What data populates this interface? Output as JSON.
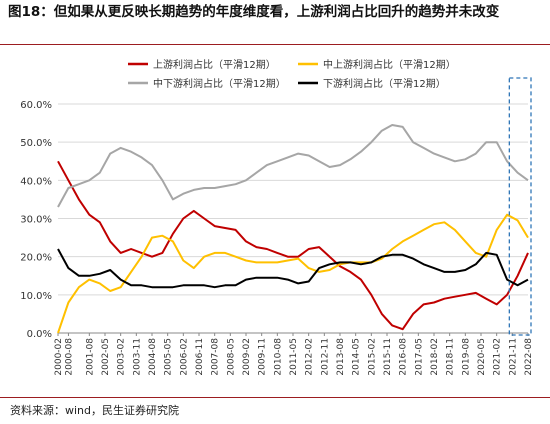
{
  "title": "图18：但如果从更反映长期趋势的年度维度看，上游利润占比回升的趋势并未改变",
  "source": "资料来源：wind，民生证券研究院",
  "chart_data": {
    "type": "line",
    "ylim": [
      0,
      60
    ],
    "yticks": [
      "0.0%",
      "10.0%",
      "20.0%",
      "30.0%",
      "40.0%",
      "50.0%",
      "60.0%"
    ],
    "x_start": "2000-02",
    "x_end": "2022-08",
    "xticks": [
      "2000-02",
      "2000-08",
      "2001-08",
      "2002-05",
      "2003-02",
      "2003-11",
      "2004-08",
      "2005-05",
      "2006-02",
      "2006-11",
      "2007-08",
      "2008-05",
      "2009-02",
      "2009-11",
      "2010-08",
      "2011-05",
      "2012-02",
      "2012-11",
      "2013-08",
      "2014-05",
      "2015-02",
      "2015-11",
      "2016-08",
      "2017-05",
      "2018-02",
      "2018-11",
      "2019-08",
      "2020-05",
      "2021-02",
      "2021-11",
      "2022-08"
    ],
    "legend": [
      {
        "key": "upstream",
        "label": "上游利润占比（平滑12期）"
      },
      {
        "key": "midup",
        "label": "中上游利润占比（平滑12期）"
      },
      {
        "key": "middown",
        "label": "中下游利润占比（平滑12期）"
      },
      {
        "key": "downstream",
        "label": "下游利润占比（平滑12期）"
      }
    ],
    "colors": {
      "upstream": "#c00000",
      "midup": "#ffc000",
      "middown": "#a6a6a6",
      "downstream": "#000000"
    },
    "highlight": {
      "from": "2021-11",
      "to": "2022-08",
      "style": "dashed-box",
      "color": "#2e75b6"
    },
    "series": [
      {
        "key": "upstream",
        "points": [
          [
            "2000-02",
            45
          ],
          [
            "2000-08",
            40
          ],
          [
            "2001-02",
            35
          ],
          [
            "2001-08",
            31
          ],
          [
            "2002-02",
            29
          ],
          [
            "2002-08",
            24
          ],
          [
            "2003-02",
            21
          ],
          [
            "2003-08",
            22
          ],
          [
            "2004-02",
            21
          ],
          [
            "2004-08",
            20
          ],
          [
            "2005-02",
            21
          ],
          [
            "2005-08",
            26
          ],
          [
            "2006-02",
            30
          ],
          [
            "2006-08",
            32
          ],
          [
            "2007-02",
            30
          ],
          [
            "2007-08",
            28
          ],
          [
            "2008-02",
            27.5
          ],
          [
            "2008-08",
            27
          ],
          [
            "2009-02",
            24
          ],
          [
            "2009-08",
            22.5
          ],
          [
            "2010-02",
            22
          ],
          [
            "2010-08",
            21
          ],
          [
            "2011-02",
            20
          ],
          [
            "2011-08",
            20
          ],
          [
            "2012-02",
            22
          ],
          [
            "2012-08",
            22.5
          ],
          [
            "2013-02",
            20
          ],
          [
            "2013-08",
            17.5
          ],
          [
            "2014-02",
            16
          ],
          [
            "2014-08",
            14
          ],
          [
            "2015-02",
            10
          ],
          [
            "2015-08",
            5
          ],
          [
            "2016-02",
            2
          ],
          [
            "2016-08",
            1
          ],
          [
            "2017-02",
            5
          ],
          [
            "2017-08",
            7.5
          ],
          [
            "2018-02",
            8
          ],
          [
            "2018-08",
            9
          ],
          [
            "2019-02",
            9.5
          ],
          [
            "2019-08",
            10
          ],
          [
            "2020-02",
            10.5
          ],
          [
            "2020-08",
            9
          ],
          [
            "2021-02",
            7.5
          ],
          [
            "2021-08",
            10
          ],
          [
            "2022-02",
            15
          ],
          [
            "2022-08",
            21
          ]
        ]
      },
      {
        "key": "midup",
        "points": [
          [
            "2000-02",
            0
          ],
          [
            "2000-08",
            8
          ],
          [
            "2001-02",
            12
          ],
          [
            "2001-08",
            14
          ],
          [
            "2002-02",
            13
          ],
          [
            "2002-08",
            11
          ],
          [
            "2003-02",
            12
          ],
          [
            "2003-08",
            16
          ],
          [
            "2004-02",
            20
          ],
          [
            "2004-08",
            25
          ],
          [
            "2005-02",
            25.5
          ],
          [
            "2005-08",
            24
          ],
          [
            "2006-02",
            19
          ],
          [
            "2006-08",
            17
          ],
          [
            "2007-02",
            20
          ],
          [
            "2007-08",
            21
          ],
          [
            "2008-02",
            21
          ],
          [
            "2008-08",
            20
          ],
          [
            "2009-02",
            19
          ],
          [
            "2009-08",
            18.5
          ],
          [
            "2010-02",
            18.5
          ],
          [
            "2010-08",
            18.5
          ],
          [
            "2011-02",
            19
          ],
          [
            "2011-08",
            19.5
          ],
          [
            "2012-02",
            17
          ],
          [
            "2012-08",
            16
          ],
          [
            "2013-02",
            16.5
          ],
          [
            "2013-08",
            18
          ],
          [
            "2014-02",
            18.5
          ],
          [
            "2014-08",
            18.5
          ],
          [
            "2015-02",
            18.5
          ],
          [
            "2015-08",
            19.5
          ],
          [
            "2016-02",
            22
          ],
          [
            "2016-08",
            24
          ],
          [
            "2017-02",
            25.5
          ],
          [
            "2017-08",
            27
          ],
          [
            "2018-02",
            28.5
          ],
          [
            "2018-08",
            29
          ],
          [
            "2019-02",
            27
          ],
          [
            "2019-08",
            24
          ],
          [
            "2020-02",
            21
          ],
          [
            "2020-08",
            20
          ],
          [
            "2021-02",
            27
          ],
          [
            "2021-08",
            31
          ],
          [
            "2022-02",
            29.5
          ],
          [
            "2022-08",
            25
          ]
        ]
      },
      {
        "key": "middown",
        "points": [
          [
            "2000-02",
            33
          ],
          [
            "2000-08",
            38
          ],
          [
            "2001-02",
            39
          ],
          [
            "2001-08",
            40
          ],
          [
            "2002-02",
            42
          ],
          [
            "2002-08",
            47
          ],
          [
            "2003-02",
            48.5
          ],
          [
            "2003-08",
            47.5
          ],
          [
            "2004-02",
            46
          ],
          [
            "2004-08",
            44
          ],
          [
            "2005-02",
            40
          ],
          [
            "2005-08",
            35
          ],
          [
            "2006-02",
            36.5
          ],
          [
            "2006-08",
            37.5
          ],
          [
            "2007-02",
            38
          ],
          [
            "2007-08",
            38
          ],
          [
            "2008-02",
            38.5
          ],
          [
            "2008-08",
            39
          ],
          [
            "2009-02",
            40
          ],
          [
            "2009-08",
            42
          ],
          [
            "2010-02",
            44
          ],
          [
            "2010-08",
            45
          ],
          [
            "2011-02",
            46
          ],
          [
            "2011-08",
            47
          ],
          [
            "2012-02",
            46.5
          ],
          [
            "2012-08",
            45
          ],
          [
            "2013-02",
            43.5
          ],
          [
            "2013-08",
            44
          ],
          [
            "2014-02",
            45.5
          ],
          [
            "2014-08",
            47.5
          ],
          [
            "2015-02",
            50
          ],
          [
            "2015-08",
            53
          ],
          [
            "2016-02",
            54.5
          ],
          [
            "2016-08",
            54
          ],
          [
            "2017-02",
            50
          ],
          [
            "2017-08",
            48.5
          ],
          [
            "2018-02",
            47
          ],
          [
            "2018-08",
            46
          ],
          [
            "2019-02",
            45
          ],
          [
            "2019-08",
            45.5
          ],
          [
            "2020-02",
            47
          ],
          [
            "2020-08",
            50
          ],
          [
            "2021-02",
            50
          ],
          [
            "2021-08",
            45
          ],
          [
            "2022-02",
            42
          ],
          [
            "2022-08",
            40
          ]
        ]
      },
      {
        "key": "downstream",
        "points": [
          [
            "2000-02",
            22
          ],
          [
            "2000-08",
            17
          ],
          [
            "2001-02",
            15
          ],
          [
            "2001-08",
            15
          ],
          [
            "2002-02",
            15.5
          ],
          [
            "2002-08",
            16.5
          ],
          [
            "2003-02",
            14
          ],
          [
            "2003-08",
            12.5
          ],
          [
            "2004-02",
            12.5
          ],
          [
            "2004-08",
            12
          ],
          [
            "2005-02",
            12
          ],
          [
            "2005-08",
            12
          ],
          [
            "2006-02",
            12.5
          ],
          [
            "2006-08",
            12.5
          ],
          [
            "2007-02",
            12.5
          ],
          [
            "2007-08",
            12
          ],
          [
            "2008-02",
            12.5
          ],
          [
            "2008-08",
            12.5
          ],
          [
            "2009-02",
            14
          ],
          [
            "2009-08",
            14.5
          ],
          [
            "2010-02",
            14.5
          ],
          [
            "2010-08",
            14.5
          ],
          [
            "2011-02",
            14
          ],
          [
            "2011-08",
            13
          ],
          [
            "2012-02",
            13.5
          ],
          [
            "2012-08",
            17
          ],
          [
            "2013-02",
            18
          ],
          [
            "2013-08",
            18.5
          ],
          [
            "2014-02",
            18.5
          ],
          [
            "2014-08",
            18
          ],
          [
            "2015-02",
            18.5
          ],
          [
            "2015-08",
            20
          ],
          [
            "2016-02",
            20.5
          ],
          [
            "2016-08",
            20.5
          ],
          [
            "2017-02",
            19.5
          ],
          [
            "2017-08",
            18
          ],
          [
            "2018-02",
            17
          ],
          [
            "2018-08",
            16
          ],
          [
            "2019-02",
            16
          ],
          [
            "2019-08",
            16.5
          ],
          [
            "2020-02",
            18
          ],
          [
            "2020-08",
            21
          ],
          [
            "2021-02",
            20.5
          ],
          [
            "2021-08",
            14
          ],
          [
            "2022-02",
            12.5
          ],
          [
            "2022-08",
            14
          ]
        ]
      }
    ]
  }
}
